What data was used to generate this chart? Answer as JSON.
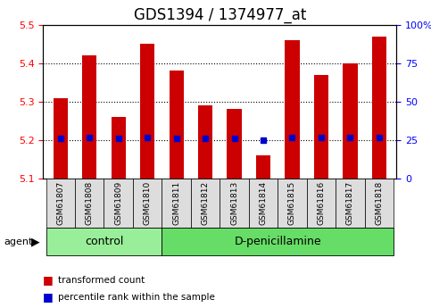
{
  "title": "GDS1394 / 1374977_at",
  "samples": [
    "GSM61807",
    "GSM61808",
    "GSM61809",
    "GSM61810",
    "GSM61811",
    "GSM61812",
    "GSM61813",
    "GSM61814",
    "GSM61815",
    "GSM61816",
    "GSM61817",
    "GSM61818"
  ],
  "transformed_counts": [
    5.31,
    5.42,
    5.26,
    5.45,
    5.38,
    5.29,
    5.28,
    5.16,
    5.46,
    5.37,
    5.4,
    5.47
  ],
  "percentile_ranks": [
    26,
    27,
    26,
    27,
    26,
    26,
    26,
    25,
    27,
    27,
    27,
    27
  ],
  "base_value": 5.1,
  "ylim": [
    5.1,
    5.5
  ],
  "yticks": [
    5.1,
    5.2,
    5.3,
    5.4,
    5.5
  ],
  "right_ylim": [
    0,
    100
  ],
  "right_yticks": [
    0,
    25,
    50,
    75,
    100
  ],
  "right_yticklabels": [
    "0",
    "25",
    "50",
    "75",
    "100%"
  ],
  "bar_color": "#cc0000",
  "dot_color": "#0000cc",
  "bar_width": 0.5,
  "agent_groups": [
    {
      "label": "control",
      "start": 0,
      "end": 3,
      "color": "#99ee99"
    },
    {
      "label": "D-penicillamine",
      "start": 4,
      "end": 11,
      "color": "#66dd66"
    }
  ],
  "legend_bar_color": "#cc0000",
  "legend_dot_color": "#0000cc",
  "tick_label_bg": "#dddddd",
  "grid_dotted_at": [
    5.2,
    5.3,
    5.4
  ],
  "title_fontsize": 12,
  "tick_fontsize": 8,
  "label_fontsize": 9
}
